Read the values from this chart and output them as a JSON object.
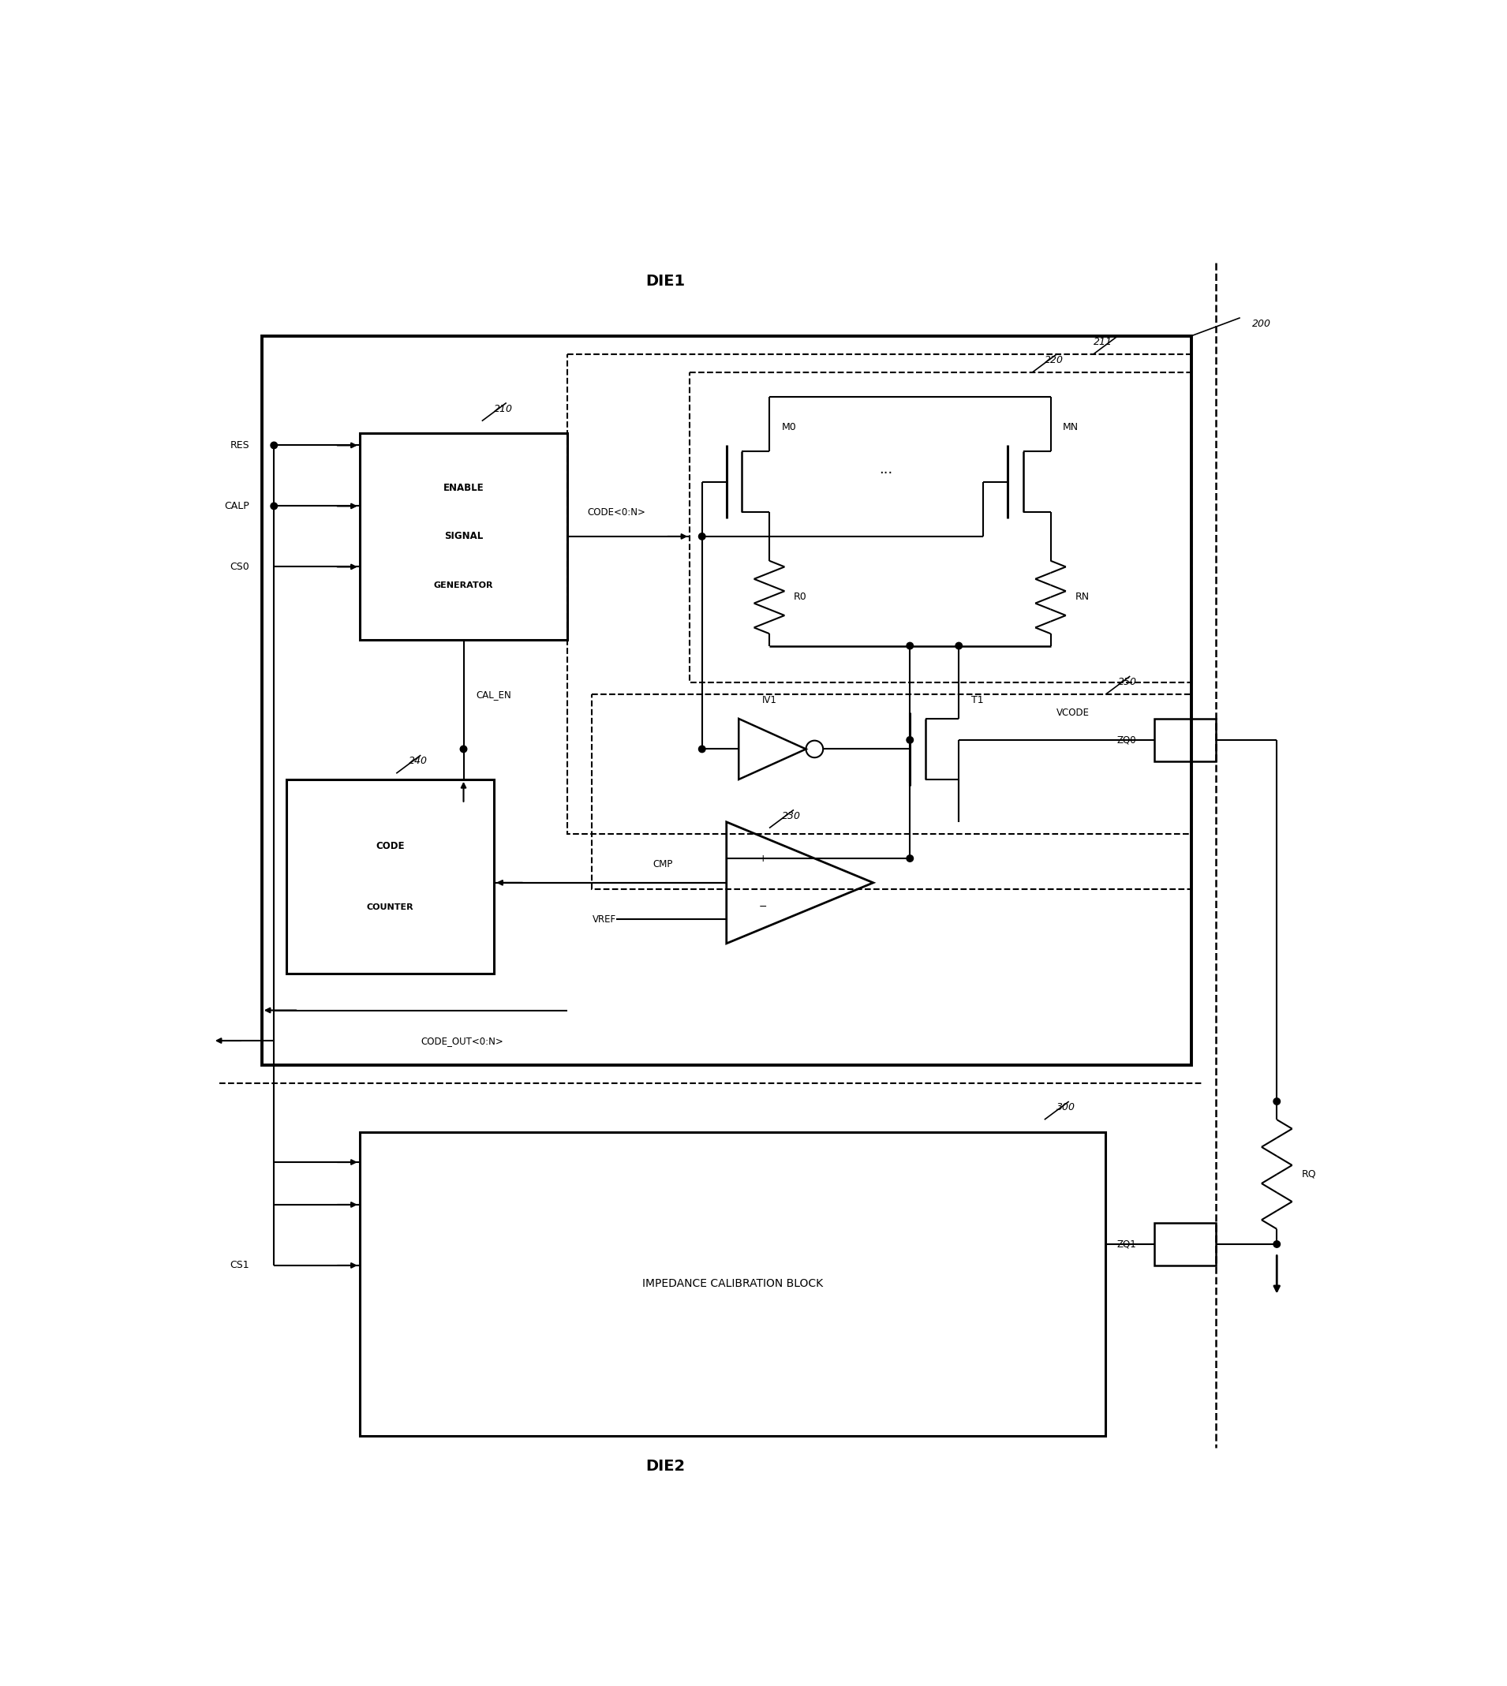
{
  "fig_width": 19.1,
  "fig_height": 21.37,
  "bg_color": "#ffffff",
  "die1_label": "DIE1",
  "die2_label": "DIE2",
  "label_200": "200",
  "label_210": "210",
  "label_211": "211",
  "label_220": "220",
  "label_230": "230",
  "label_240": "240",
  "label_250": "250",
  "label_300": "300",
  "enable_signal_lines": [
    "ENABLE",
    "SIGNAL",
    "GENERATOR"
  ],
  "code_counter_lines": [
    "CODE",
    "COUNTER"
  ],
  "icb_text": "IMPEDANCE CALIBRATION BLOCK",
  "inputs": [
    "RES",
    "CALP",
    "CS0"
  ],
  "cs1": "CS1",
  "cal_en": "CAL_EN",
  "code_bus": "CODE<0:N>",
  "cmp_label": "CMP",
  "vcode_label": "VCODE",
  "vref_label": "VREF",
  "code_out": "CODE_OUT<0:N>",
  "zq0": "ZQ0",
  "zq1": "ZQ1",
  "rq": "RQ",
  "m0": "M0",
  "mn": "MN",
  "t1": "T1",
  "r0": "R0",
  "rn": "RN",
  "iv1": "IV1",
  "dots": "..."
}
